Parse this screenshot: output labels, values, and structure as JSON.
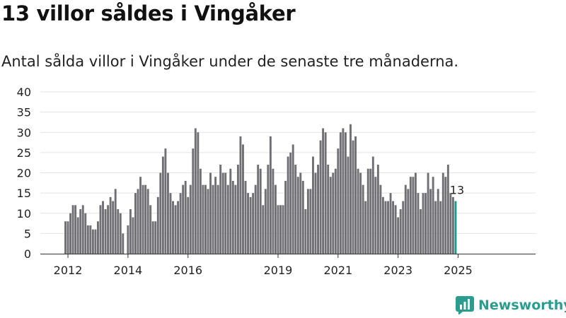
{
  "title": "13 villor såldes i Vingåker",
  "subtitle": "Antal sålda villor i Vingåker under de senaste tre månaderna.",
  "brand": {
    "name": "Newsworthy",
    "color": "#2a9d8f"
  },
  "colors": {
    "bar": "#706f73",
    "highlight": "#1a9a8e",
    "grid": "#e3e3e3"
  },
  "chart_data": {
    "type": "bar",
    "title": "13 villor såldes i Vingåker",
    "xlabel": "",
    "ylabel": "",
    "ylim": [
      0,
      40
    ],
    "yticks": [
      0,
      5,
      10,
      15,
      20,
      25,
      30,
      35,
      40
    ],
    "grid": true,
    "x_start": "2011-12",
    "x_end": "2025-03",
    "xtick_labels": [
      {
        "label": "2012",
        "date": "2012-01"
      },
      {
        "label": "2014",
        "date": "2014-01"
      },
      {
        "label": "2016",
        "date": "2016-01"
      },
      {
        "label": "2019",
        "date": "2019-01"
      },
      {
        "label": "2021",
        "date": "2021-01"
      },
      {
        "label": "2023",
        "date": "2023-01"
      },
      {
        "label": "2025",
        "date": "2025-01"
      }
    ],
    "highlight_label": "13",
    "series": [
      {
        "values": [
          8,
          8,
          10,
          12,
          12,
          9,
          11,
          12,
          10,
          7,
          7,
          6,
          6,
          8,
          12,
          13,
          11,
          12,
          14,
          13,
          16,
          11,
          10,
          5,
          null,
          7,
          11,
          9,
          15,
          16,
          19,
          17,
          17,
          16,
          12,
          8,
          8,
          14,
          20,
          24,
          26,
          20,
          15,
          13,
          12,
          13,
          15,
          17,
          18,
          14,
          17,
          26,
          31,
          30,
          21,
          17,
          17,
          16,
          20,
          17,
          19,
          17,
          22,
          20,
          20,
          17,
          21,
          18,
          17,
          22,
          29,
          27,
          18,
          15,
          14,
          15,
          17,
          22,
          21,
          12,
          16,
          22,
          29,
          21,
          17,
          12,
          12,
          12,
          18,
          24,
          25,
          27,
          22,
          19,
          20,
          18,
          11,
          16,
          16,
          24,
          20,
          22,
          28,
          31,
          30,
          22,
          19,
          20,
          21,
          26,
          30,
          31,
          30,
          24,
          32,
          28,
          29,
          21,
          20,
          17,
          13,
          21,
          21,
          24,
          19,
          22,
          17,
          14,
          13,
          13,
          15,
          13,
          12,
          9,
          11,
          13,
          17,
          16,
          19,
          19,
          20,
          15,
          11,
          15,
          15,
          20,
          16,
          19,
          13,
          16,
          13,
          20,
          19,
          22,
          15,
          14,
          13
        ]
      }
    ]
  }
}
